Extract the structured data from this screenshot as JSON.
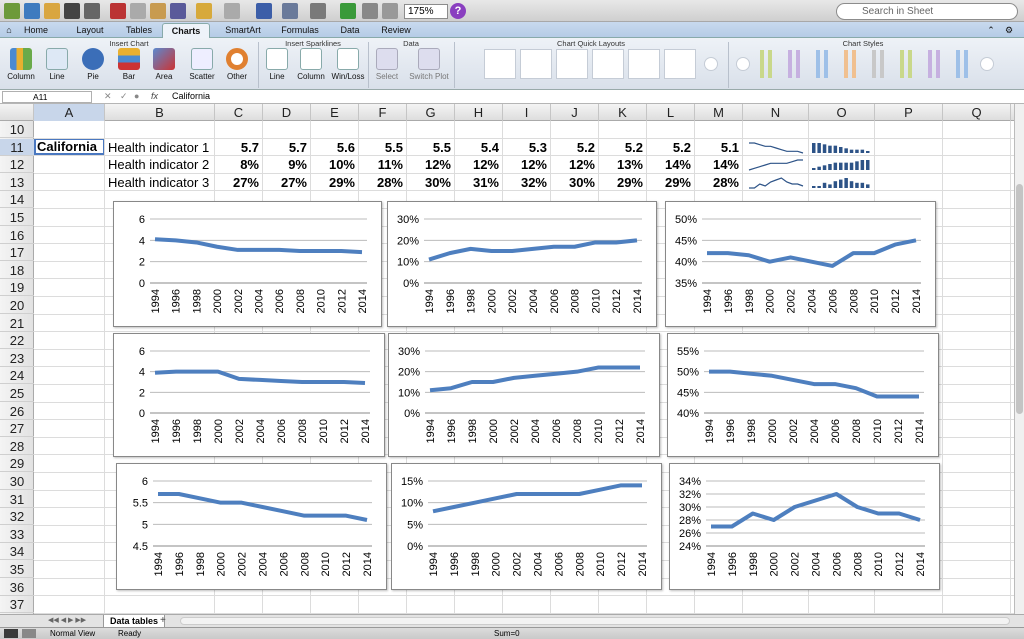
{
  "toolbar": {
    "zoom": "175%",
    "search_placeholder": "Search in Sheet",
    "help": "?"
  },
  "tabs": [
    "Home",
    "Layout",
    "Tables",
    "Charts",
    "SmartArt",
    "Formulas",
    "Data",
    "Review"
  ],
  "ribbon": {
    "groups": [
      "Insert Chart",
      "Insert Sparklines",
      "Data",
      "Chart Quick Layouts",
      "Chart Styles"
    ],
    "insert_chart": [
      "Column",
      "Line",
      "Pie",
      "Bar",
      "Area",
      "Scatter",
      "Other"
    ],
    "sparklines": [
      "Line",
      "Column",
      "Win/Loss"
    ],
    "data": [
      "Select",
      "Switch Plot"
    ]
  },
  "formula_bar": {
    "name_box": "A11",
    "fx": "fx",
    "value": "California"
  },
  "columns": [
    "A",
    "B",
    "C",
    "D",
    "E",
    "F",
    "G",
    "H",
    "I",
    "J",
    "K",
    "L",
    "M",
    "N",
    "O",
    "P",
    "Q"
  ],
  "rows": [
    "10",
    "11",
    "12",
    "13",
    "14",
    "15",
    "16",
    "17",
    "18",
    "19",
    "20",
    "21",
    "22",
    "23",
    "24",
    "25",
    "26",
    "27",
    "28",
    "29",
    "30",
    "31",
    "32",
    "33",
    "34",
    "35",
    "36",
    "37"
  ],
  "cells": {
    "a11": "California",
    "indicators": [
      {
        "label": "Health indicator 1",
        "values": [
          "5.7",
          "5.7",
          "5.6",
          "5.5",
          "5.5",
          "5.4",
          "5.3",
          "5.2",
          "5.2",
          "5.2",
          "5.1"
        ]
      },
      {
        "label": "Health indicator 2",
        "values": [
          "8%",
          "9%",
          "10%",
          "11%",
          "12%",
          "12%",
          "12%",
          "12%",
          "13%",
          "14%",
          "14%"
        ]
      },
      {
        "label": "Health indicator 3",
        "values": [
          "27%",
          "27%",
          "29%",
          "28%",
          "30%",
          "31%",
          "32%",
          "30%",
          "29%",
          "29%",
          "28%"
        ]
      }
    ]
  },
  "chart_data": [
    {
      "type": "line",
      "x": [
        "1994",
        "1996",
        "1998",
        "2000",
        "2002",
        "2004",
        "2006",
        "2008",
        "2010",
        "2012",
        "2014"
      ],
      "values": [
        4.1,
        4.0,
        3.8,
        3.4,
        3.1,
        3.1,
        3.1,
        3.0,
        3.0,
        3.0,
        2.9
      ],
      "ylim": [
        0,
        6
      ],
      "yticks": [
        "0",
        "2",
        "4",
        "6"
      ],
      "color": "#4e7fbf"
    },
    {
      "type": "line",
      "x": [
        "1994",
        "1996",
        "1998",
        "2000",
        "2002",
        "2004",
        "2006",
        "2008",
        "2010",
        "2012",
        "2014"
      ],
      "values": [
        11,
        14,
        16,
        15,
        15,
        16,
        17,
        17,
        19,
        19,
        20
      ],
      "ylim": [
        0,
        30
      ],
      "yticks": [
        "0%",
        "10%",
        "20%",
        "30%"
      ],
      "color": "#4e7fbf"
    },
    {
      "type": "line",
      "x": [
        "1994",
        "1996",
        "1998",
        "2000",
        "2002",
        "2004",
        "2006",
        "2008",
        "2010",
        "2012",
        "2014"
      ],
      "values": [
        42,
        42,
        41.5,
        40,
        41,
        40,
        39,
        42,
        42,
        44,
        45
      ],
      "ylim": [
        35,
        50
      ],
      "yticks": [
        "35%",
        "40%",
        "45%",
        "50%"
      ],
      "color": "#4e7fbf"
    },
    {
      "type": "line",
      "x": [
        "1994",
        "1996",
        "1998",
        "2000",
        "2002",
        "2004",
        "2006",
        "2008",
        "2010",
        "2012",
        "2014"
      ],
      "values": [
        3.9,
        4.0,
        4.0,
        4.0,
        3.3,
        3.2,
        3.1,
        3.0,
        3.0,
        3.0,
        2.9
      ],
      "ylim": [
        0,
        6
      ],
      "yticks": [
        "0",
        "2",
        "4",
        "6"
      ],
      "color": "#4e7fbf"
    },
    {
      "type": "line",
      "x": [
        "1994",
        "1996",
        "1998",
        "2000",
        "2002",
        "2004",
        "2006",
        "2008",
        "2010",
        "2012",
        "2014"
      ],
      "values": [
        11,
        12,
        15,
        15,
        17,
        18,
        19,
        20,
        22,
        22,
        22
      ],
      "ylim": [
        0,
        30
      ],
      "yticks": [
        "0%",
        "10%",
        "20%",
        "30%"
      ],
      "color": "#4e7fbf"
    },
    {
      "type": "line",
      "x": [
        "1994",
        "1996",
        "1998",
        "2000",
        "2002",
        "2004",
        "2006",
        "2008",
        "2010",
        "2012",
        "2014"
      ],
      "values": [
        50,
        50,
        49.5,
        49,
        48,
        47,
        47,
        46,
        44,
        44,
        44
      ],
      "ylim": [
        40,
        55
      ],
      "yticks": [
        "40%",
        "45%",
        "50%",
        "55%"
      ],
      "color": "#4e7fbf"
    },
    {
      "type": "line",
      "x": [
        "1994",
        "1996",
        "1998",
        "2000",
        "2002",
        "2004",
        "2006",
        "2008",
        "2010",
        "2012",
        "2014"
      ],
      "values": [
        5.7,
        5.7,
        5.6,
        5.5,
        5.5,
        5.4,
        5.3,
        5.2,
        5.2,
        5.2,
        5.1
      ],
      "ylim": [
        4.5,
        6
      ],
      "yticks": [
        "4.5",
        "5",
        "5.5",
        "6"
      ],
      "color": "#4e7fbf"
    },
    {
      "type": "line",
      "x": [
        "1994",
        "1996",
        "1998",
        "2000",
        "2002",
        "2004",
        "2006",
        "2008",
        "2010",
        "2012",
        "2014"
      ],
      "values": [
        8,
        9,
        10,
        11,
        12,
        12,
        12,
        12,
        13,
        14,
        14
      ],
      "ylim": [
        0,
        15
      ],
      "yticks": [
        "0%",
        "5%",
        "10%",
        "15%"
      ],
      "color": "#4e7fbf"
    },
    {
      "type": "line",
      "x": [
        "1994",
        "1996",
        "1998",
        "2000",
        "2002",
        "2004",
        "2006",
        "2008",
        "2010",
        "2012",
        "2014"
      ],
      "values": [
        27,
        27,
        29,
        28,
        30,
        31,
        32,
        30,
        29,
        29,
        28
      ],
      "ylim": [
        24,
        34
      ],
      "yticks": [
        "24%",
        "26%",
        "28%",
        "30%",
        "32%",
        "34%"
      ],
      "color": "#4e7fbf"
    }
  ],
  "sheet_tab": "Data tables",
  "add_sheet": "+",
  "status": {
    "view": "Normal View",
    "state": "Ready",
    "sum": "Sum=0"
  }
}
